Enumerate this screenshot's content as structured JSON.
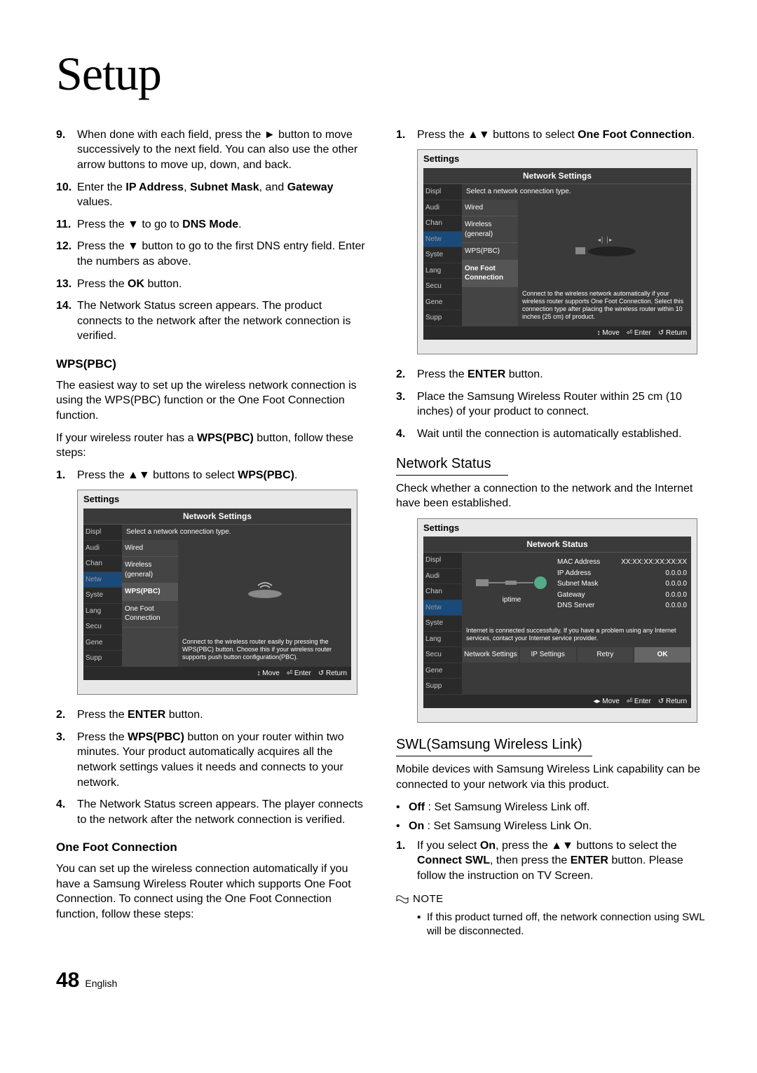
{
  "title": "Setup",
  "left": {
    "steps1": [
      {
        "n": "9.",
        "t": "When done with each field, press the ► button to move successively to the next field. You can also use the other arrow buttons to move up, down, and back."
      },
      {
        "n": "10.",
        "t": "Enter the <b>IP Address</b>, <b>Subnet Mask</b>, and <b>Gateway</b> values."
      },
      {
        "n": "11.",
        "t": "Press the ▼ to go to <b>DNS Mode</b>."
      },
      {
        "n": "12.",
        "t": "Press the ▼ button to go to the first DNS entry field. Enter the numbers as above."
      },
      {
        "n": "13.",
        "t": "Press the <b>OK</b> button."
      },
      {
        "n": "14.",
        "t": "The Network Status screen appears. The product connects to the network after the network connection is verified."
      }
    ],
    "wps_heading": "WPS(PBC)",
    "wps_p1": "The easiest way to set up the wireless network connection is using the WPS(PBC) function or the One Foot Connection function.",
    "wps_p2": "If your wireless router has a <b>WPS(PBC)</b> button, follow these steps:",
    "wps_steps": [
      {
        "n": "1.",
        "t": "Press the ▲▼ buttons to select <b>WPS(PBC)</b>."
      }
    ],
    "wps_steps2": [
      {
        "n": "2.",
        "t": "Press the <b>ENTER</b> button."
      },
      {
        "n": "3.",
        "t": "Press the <b>WPS(PBC)</b> button on your router within two minutes. Your product automatically acquires all the network settings values it needs and connects to your network."
      },
      {
        "n": "4.",
        "t": "The Network Status screen appears. The player connects to the network after the network connection is verified."
      }
    ],
    "ofc_heading": "One Foot Connection",
    "ofc_p": "You can set up the wireless connection automatically if you have a Samsung Wireless Router which supports One Foot Connection. To connect using the One Foot Connection function, follow these steps:"
  },
  "right": {
    "ofc_steps1": [
      {
        "n": "1.",
        "t": "Press the ▲▼ buttons to select <b>One Foot Connection</b>."
      }
    ],
    "ofc_steps2": [
      {
        "n": "2.",
        "t": "Press the <b>ENTER</b> button."
      },
      {
        "n": "3.",
        "t": "Place the Samsung Wireless Router within 25 cm (10 inches) of your product to connect."
      },
      {
        "n": "4.",
        "t": "Wait until the connection is automatically established."
      }
    ],
    "ns_heading": "Network Status",
    "ns_p": "Check whether a connection to the network and the Internet have been established.",
    "swl_heading": "SWL(Samsung Wireless Link)",
    "swl_p": "Mobile devices with Samsung Wireless Link capability can be connected to your network via this product.",
    "swl_bullets": [
      "<b>Off</b> : Set Samsung Wireless Link off.",
      "<b>On</b> : Set Samsung Wireless Link On."
    ],
    "swl_steps": [
      {
        "n": "1.",
        "t": "If you select <b>On</b>, press the ▲▼ buttons to select the <b>Connect SWL</b>, then press the <b>ENTER</b>  button. Please follow the instruction on TV Screen."
      }
    ],
    "note_label": "NOTE",
    "note_item": "If this product turned off, the network connection using SWL will be disconnected."
  },
  "ui1": {
    "window": "Settings",
    "title": "Network Settings",
    "subtitle": "Select a network connection type.",
    "side": [
      "Displ",
      "Audi",
      "Chan",
      "Netw",
      "Syste",
      "Lang",
      "Secu",
      "Gene",
      "Supp"
    ],
    "menu": [
      "Wired",
      "Wireless (general)",
      "WPS(PBC)",
      "One Foot Connection"
    ],
    "menu_active": 2,
    "desc": "Connect to the wireless router easily by pressing the WPS(PBC) button. Choose this if your wireless router supports push button configuration(PBC).",
    "footer": [
      "↕ Move",
      "⏎ Enter",
      "↺ Return"
    ]
  },
  "ui2": {
    "window": "Settings",
    "title": "Network Settings",
    "subtitle": "Select a network connection type.",
    "side": [
      "Displ",
      "Audi",
      "Chan",
      "Netw",
      "Syste",
      "Lang",
      "Secu",
      "Gene",
      "Supp"
    ],
    "menu": [
      "Wired",
      "Wireless (general)",
      "WPS(PBC)",
      "One Foot Connection"
    ],
    "menu_active": 3,
    "desc": "Connect to the wireless network automatically if your wireless router supports One Foot Connection. Select this connection type after placing the wireless router within 10 inches (25 cm) of product.",
    "footer": [
      "↕ Move",
      "⏎ Enter",
      "↺ Return"
    ]
  },
  "ui3": {
    "window": "Settings",
    "title": "Network Status",
    "side": [
      "Displ",
      "Audi",
      "Chan",
      "Netw",
      "Syste",
      "Lang",
      "Secu",
      "Gene",
      "Supp"
    ],
    "netname": "iptime",
    "rows": [
      [
        "MAC Address",
        "XX:XX:XX:XX:XX:XX"
      ],
      [
        "IP Address",
        "0.0.0.0"
      ],
      [
        "Subnet Mask",
        "0.0.0.0"
      ],
      [
        "Gateway",
        "0.0.0.0"
      ],
      [
        "DNS Server",
        "0.0.0.0"
      ]
    ],
    "msg": "Internet is connected successfully.\nIf you have a problem using any Internet services, contact your Internet service provider.",
    "buttons": [
      "Network Settings",
      "IP Settings",
      "Retry",
      "OK"
    ],
    "button_active": 3,
    "footer": [
      "◂▸ Move",
      "⏎ Enter",
      "↺ Return"
    ]
  },
  "page": {
    "num": "48",
    "lang": "English"
  }
}
